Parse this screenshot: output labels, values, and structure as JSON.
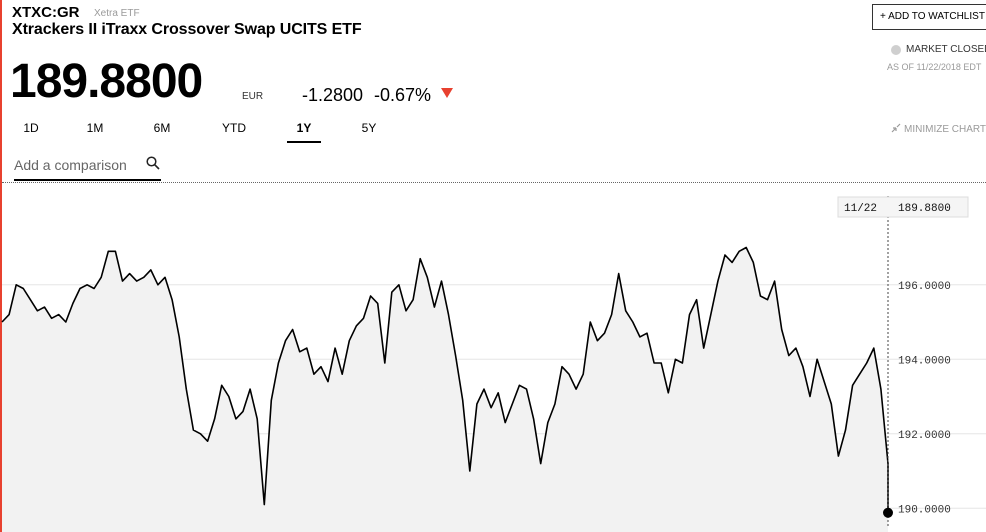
{
  "header": {
    "ticker": "XTXC:GR",
    "exchange": "Xetra ETF",
    "fund_name": "Xtrackers II iTraxx Crossover Swap UCITS ETF"
  },
  "quote": {
    "price": "189.8800",
    "currency": "EUR",
    "change": "-1.2800",
    "change_pct": "-0.67%",
    "direction": "down"
  },
  "watchlist": {
    "label": "+ ADD TO WATCHLIST"
  },
  "market_status": {
    "label": "MARKET CLOSED",
    "as_of": "AS OF 11/22/2018 EDT"
  },
  "tabs": [
    {
      "label": "1D",
      "active": false
    },
    {
      "label": "1M",
      "active": false
    },
    {
      "label": "6M",
      "active": false
    },
    {
      "label": "YTD",
      "active": false
    },
    {
      "label": "1Y",
      "active": true
    },
    {
      "label": "5Y",
      "active": false
    }
  ],
  "minimize_label": "MINIMIZE CHART",
  "search": {
    "placeholder": "Add a comparison"
  },
  "colors": {
    "accent_red": "#e8412f",
    "line": "#000000",
    "area_fill": "#f2f2f2",
    "grid": "#e6e6e6"
  },
  "chart_data": {
    "type": "area",
    "xlabel": "",
    "ylabel": "",
    "y_ticks": [
      {
        "value": 196,
        "label": "196.0000"
      },
      {
        "value": 194,
        "label": "194.0000"
      },
      {
        "value": 192,
        "label": "192.0000"
      },
      {
        "value": 190,
        "label": "190.0000"
      }
    ],
    "ylim": [
      189.9,
      197.9
    ],
    "tooltip": {
      "date": "11/22",
      "value": "189.8800"
    },
    "values": [
      195.0,
      195.2,
      196.0,
      195.9,
      195.6,
      195.3,
      195.4,
      195.1,
      195.2,
      195.0,
      195.5,
      195.9,
      196.0,
      195.9,
      196.2,
      196.9,
      196.9,
      196.1,
      196.3,
      196.1,
      196.2,
      196.4,
      196.0,
      196.2,
      195.6,
      194.6,
      193.2,
      192.1,
      192.0,
      191.8,
      192.4,
      193.3,
      193.0,
      192.4,
      192.6,
      193.2,
      192.4,
      190.1,
      192.9,
      193.9,
      194.5,
      194.8,
      194.2,
      194.3,
      193.6,
      193.8,
      193.4,
      194.3,
      193.6,
      194.5,
      194.9,
      195.1,
      195.7,
      195.5,
      193.9,
      195.8,
      196.0,
      195.3,
      195.6,
      196.7,
      196.2,
      195.4,
      196.1,
      195.2,
      194.1,
      192.9,
      191.0,
      192.8,
      193.2,
      192.7,
      193.1,
      192.3,
      192.8,
      193.3,
      193.2,
      192.4,
      191.2,
      192.3,
      192.8,
      193.8,
      193.6,
      193.2,
      193.6,
      195.0,
      194.5,
      194.7,
      195.2,
      196.3,
      195.3,
      195.0,
      194.6,
      194.7,
      193.9,
      193.9,
      193.1,
      194.0,
      193.9,
      195.2,
      195.6,
      194.3,
      195.2,
      196.1,
      196.8,
      196.6,
      196.9,
      197.0,
      196.6,
      195.7,
      195.6,
      196.1,
      194.8,
      194.1,
      194.3,
      193.8,
      193.0,
      194.0,
      193.4,
      192.8,
      191.4,
      192.1,
      193.3,
      193.6,
      193.9,
      194.3,
      193.2,
      191.2
    ],
    "x_positions_note": ""
  }
}
